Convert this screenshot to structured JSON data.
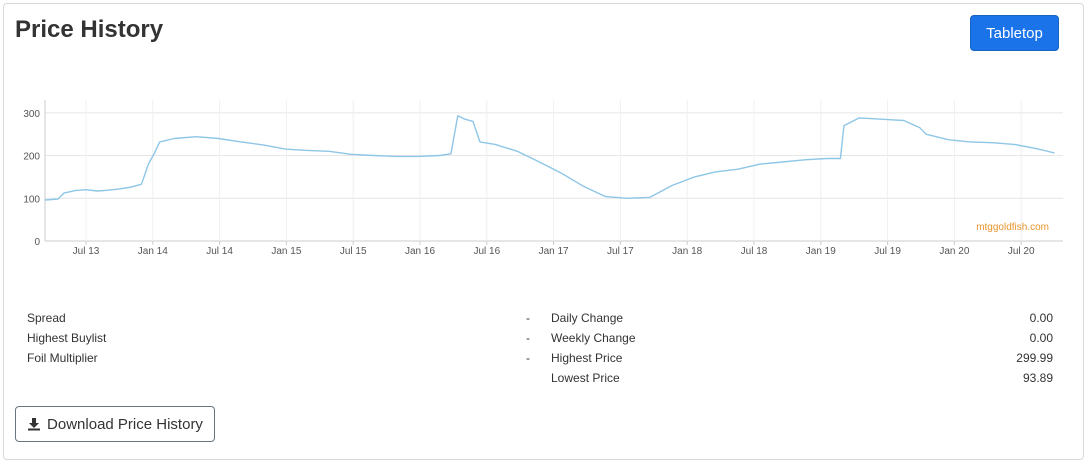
{
  "header": {
    "title": "Price History",
    "tabletop_label": "Tabletop"
  },
  "footer": {
    "download_label": "Download Price History"
  },
  "colors": {
    "line": "#8ec6e6",
    "accent": "#1a73e8",
    "watermark": "#e8942b",
    "grid": "#e6e6e6"
  },
  "chart_data": {
    "type": "line",
    "title": "",
    "xlabel": "",
    "ylabel": "",
    "ylim": [
      0,
      330
    ],
    "yticks": [
      0,
      100,
      200,
      300
    ],
    "xticks": [
      "Jul 13",
      "Jan 14",
      "Jul 14",
      "Jan 15",
      "Jul 15",
      "Jan 16",
      "Jul 16",
      "Jan 17",
      "Jul 17",
      "Jan 18",
      "Jul 18",
      "Jan 19",
      "Jul 19",
      "Jan 20",
      "Jul 20"
    ],
    "grid": true,
    "watermark": "mtggoldfish.com",
    "series": [
      {
        "x": [
          "2013-03-01",
          "2013-04-15",
          "2013-05-01",
          "2013-06-01",
          "2013-07-01",
          "2013-08-01",
          "2013-09-01",
          "2013-10-01",
          "2013-11-01",
          "2013-12-01",
          "2013-12-20",
          "2014-01-05",
          "2014-01-20",
          "2014-03-01",
          "2014-05-01",
          "2014-07-01",
          "2014-09-01",
          "2014-11-01",
          "2015-01-01",
          "2015-03-01",
          "2015-05-01",
          "2015-07-01",
          "2015-09-01",
          "2015-11-01",
          "2016-01-01",
          "2016-03-01",
          "2016-04-01",
          "2016-04-20",
          "2016-05-10",
          "2016-06-01",
          "2016-06-20",
          "2016-08-01",
          "2016-10-01",
          "2016-12-01",
          "2017-02-01",
          "2017-04-01",
          "2017-06-01",
          "2017-08-01",
          "2017-10-01",
          "2017-12-01",
          "2018-02-01",
          "2018-04-01",
          "2018-06-01",
          "2018-08-01",
          "2018-10-01",
          "2018-12-01",
          "2019-02-01",
          "2019-03-10",
          "2019-03-20",
          "2019-05-01",
          "2019-07-01",
          "2019-09-01",
          "2019-10-15",
          "2019-11-01",
          "2020-01-01",
          "2020-03-01",
          "2020-05-01",
          "2020-07-01",
          "2020-09-01",
          "2020-10-20"
        ],
        "y": [
          96,
          98,
          112,
          118,
          120,
          117,
          119,
          122,
          126,
          133,
          180,
          205,
          232,
          240,
          244,
          240,
          232,
          225,
          215,
          212,
          210,
          203,
          200,
          198,
          198,
          200,
          204,
          293,
          285,
          280,
          232,
          226,
          210,
          185,
          158,
          128,
          104,
          100,
          102,
          130,
          150,
          162,
          168,
          180,
          185,
          190,
          193,
          193,
          270,
          288,
          285,
          282,
          265,
          250,
          237,
          232,
          230,
          226,
          216,
          206
        ]
      }
    ]
  },
  "stats": {
    "left": [
      {
        "label": "Spread",
        "value": "-"
      },
      {
        "label": "Highest Buylist",
        "value": "-"
      },
      {
        "label": "Foil Multiplier",
        "value": "-"
      }
    ],
    "right": [
      {
        "label": "Daily Change",
        "value": "0.00"
      },
      {
        "label": "Weekly Change",
        "value": "0.00"
      },
      {
        "label": "Highest Price",
        "value": "299.99"
      },
      {
        "label": "Lowest Price",
        "value": "93.89"
      }
    ]
  }
}
